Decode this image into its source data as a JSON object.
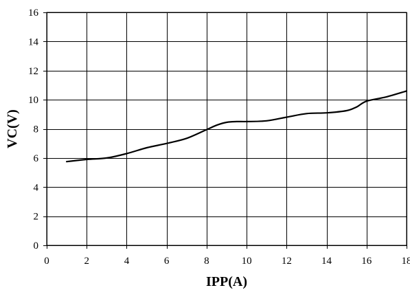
{
  "chart_data": {
    "type": "line",
    "title": "",
    "xlabel": "IPP(A)",
    "ylabel": "VC(V)",
    "xlim": [
      0,
      18
    ],
    "ylim": [
      0,
      16
    ],
    "xticks": [
      0,
      2,
      4,
      6,
      8,
      10,
      12,
      14,
      16,
      18
    ],
    "yticks": [
      0,
      2,
      4,
      6,
      8,
      10,
      12,
      14,
      16
    ],
    "grid": true,
    "series": [
      {
        "color": "#000000",
        "x": [
          1.0,
          2.0,
          3.0,
          4.0,
          5.0,
          6.0,
          7.0,
          8.0,
          8.5,
          9.0,
          9.5,
          10.0,
          11.0,
          12.0,
          13.0,
          14.0,
          15.0,
          15.5,
          16.0,
          17.0,
          18.0
        ],
        "y": [
          5.75,
          5.9,
          6.0,
          6.3,
          6.7,
          7.0,
          7.35,
          7.95,
          8.25,
          8.45,
          8.5,
          8.5,
          8.55,
          8.8,
          9.05,
          9.1,
          9.25,
          9.5,
          9.9,
          10.2,
          10.6
        ]
      }
    ]
  }
}
